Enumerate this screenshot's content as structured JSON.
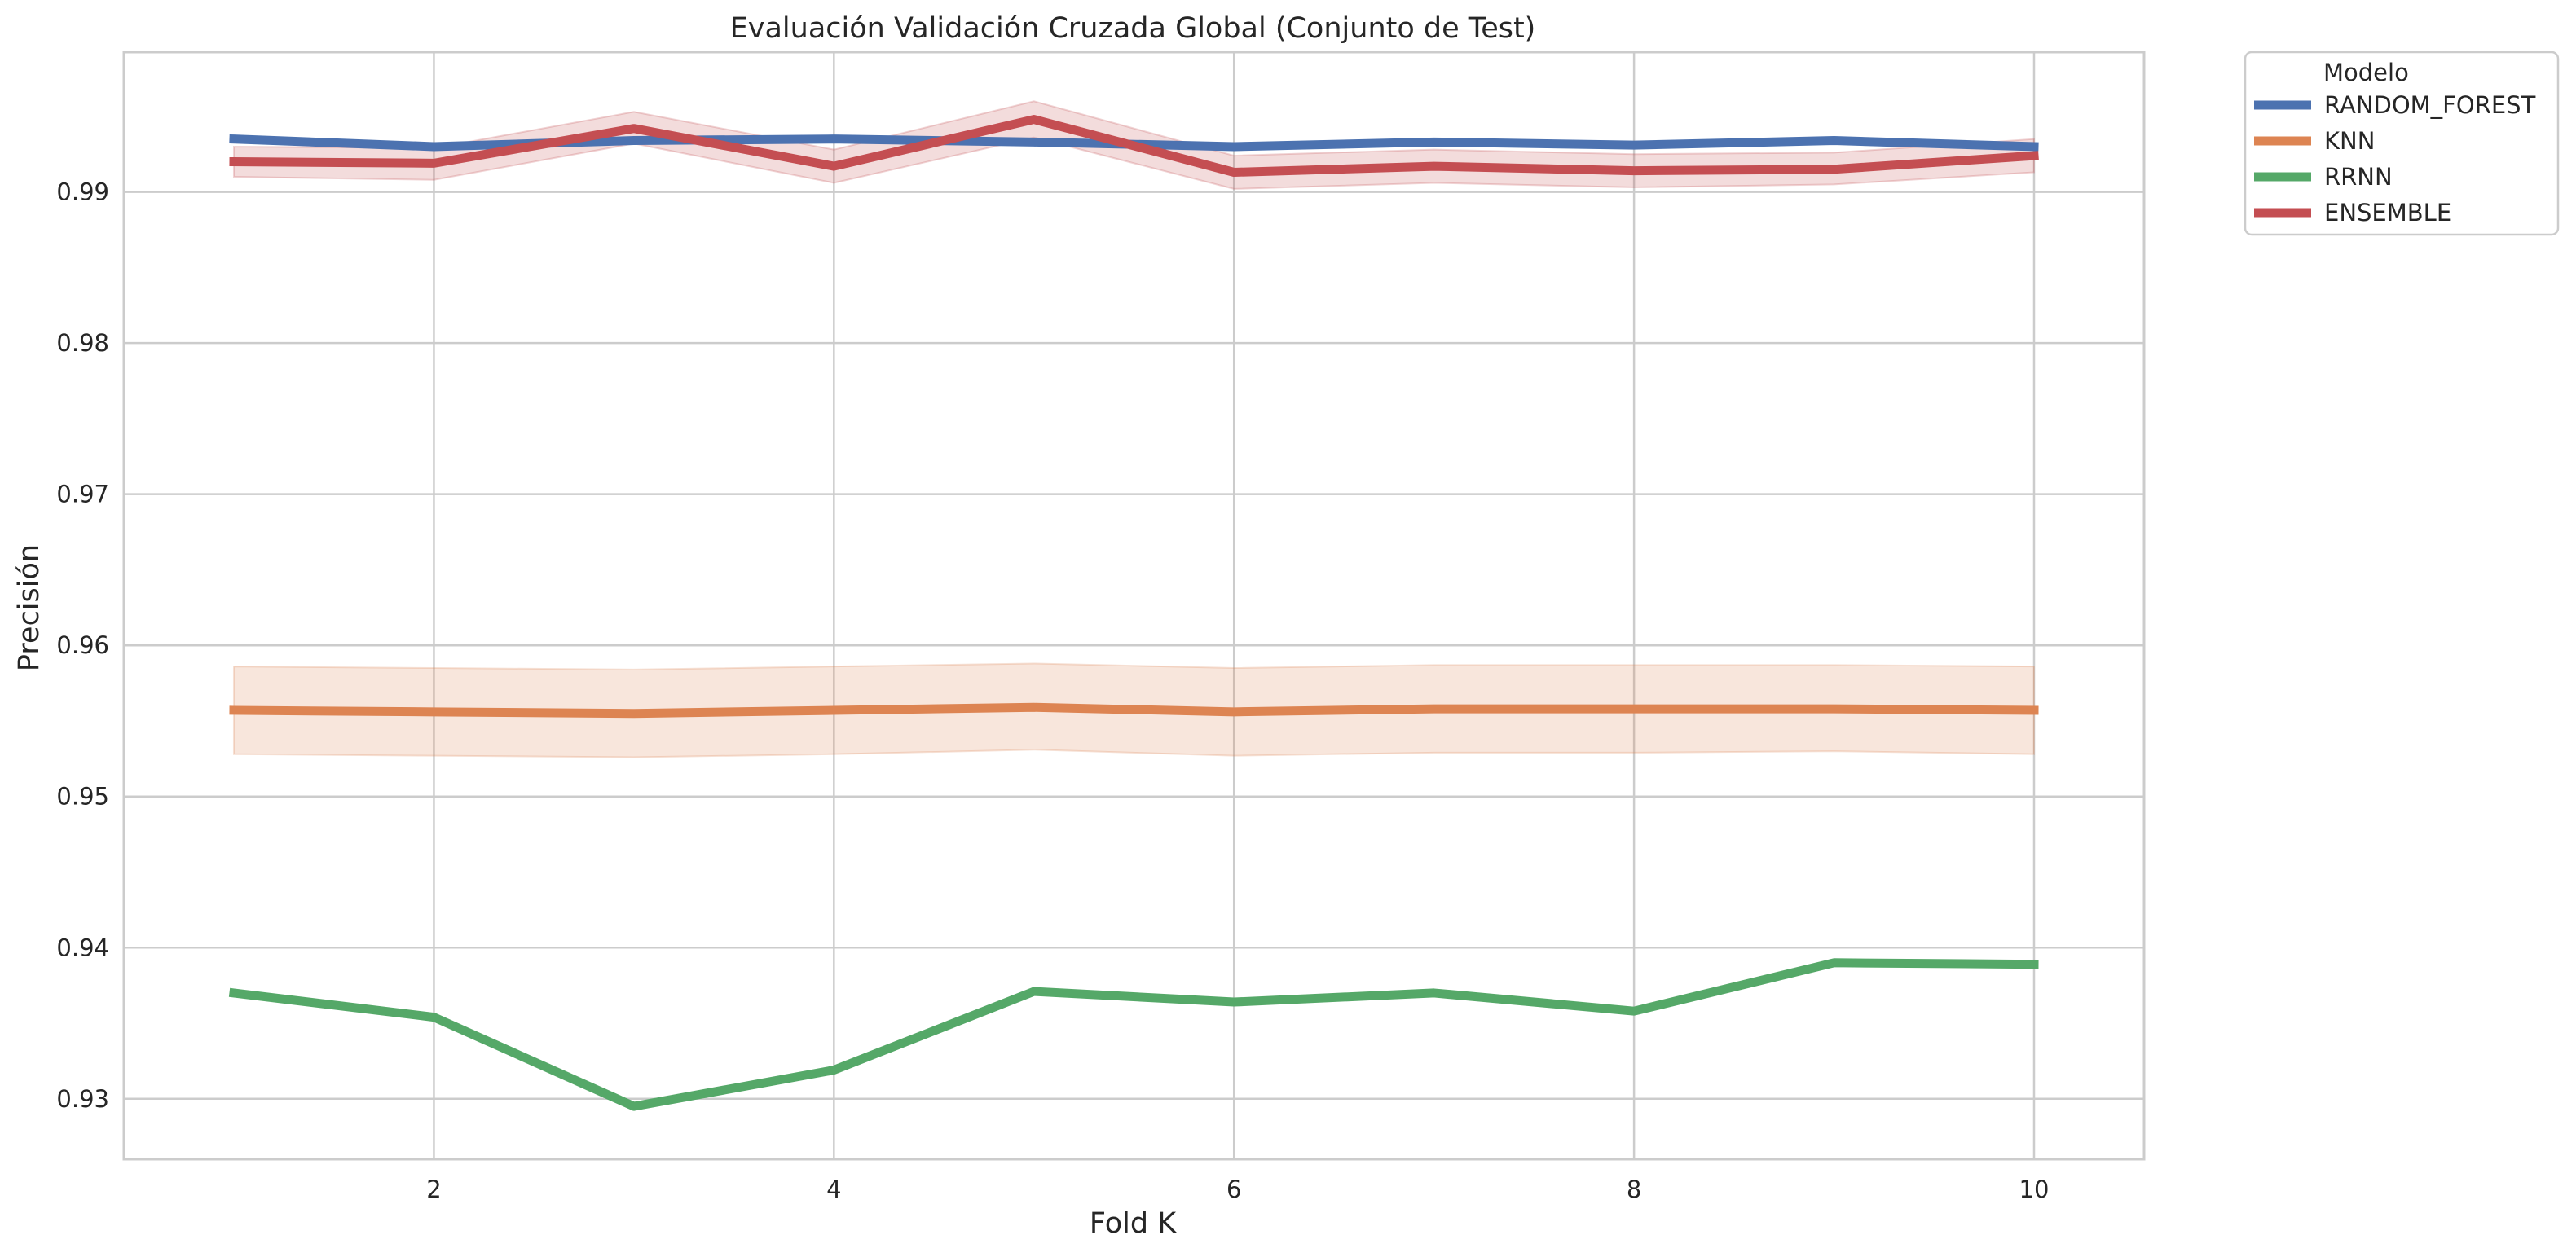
{
  "chart_data": {
    "type": "line",
    "title": "Evaluación Validación Cruzada Global (Conjunto de Test)",
    "xlabel": "Fold K",
    "ylabel": "Precisión",
    "xlim": [
      0.45,
      10.55
    ],
    "ylim": [
      0.926,
      0.99925
    ],
    "xticks": [
      2,
      4,
      6,
      8,
      10
    ],
    "yticks": [
      0.93,
      0.94,
      0.95,
      0.96,
      0.97,
      0.98,
      0.99
    ],
    "ytick_labels": [
      "0.93",
      "0.94",
      "0.95",
      "0.96",
      "0.97",
      "0.98",
      "0.99"
    ],
    "grid": true,
    "legend": {
      "title": "Modelo",
      "placement": "outside-top-right"
    },
    "x": [
      1,
      2,
      3,
      4,
      5,
      6,
      7,
      8,
      9,
      10
    ],
    "series": [
      {
        "name": "RANDOM_FOREST",
        "color": "#4c72b0",
        "values": [
          0.9935,
          0.993,
          0.9934,
          0.9935,
          0.9933,
          0.993,
          0.9933,
          0.9931,
          0.9934,
          0.993
        ],
        "lower": [
          0.9935,
          0.993,
          0.9934,
          0.9935,
          0.9933,
          0.993,
          0.9933,
          0.9931,
          0.9934,
          0.993
        ],
        "upper": [
          0.9935,
          0.993,
          0.9934,
          0.9935,
          0.9933,
          0.993,
          0.9933,
          0.9931,
          0.9934,
          0.993
        ]
      },
      {
        "name": "KNN",
        "color": "#dd8452",
        "values": [
          0.9557,
          0.9556,
          0.9555,
          0.9557,
          0.9559,
          0.9556,
          0.9558,
          0.9558,
          0.9558,
          0.9557
        ],
        "lower": [
          0.9528,
          0.9527,
          0.9526,
          0.9528,
          0.9531,
          0.9527,
          0.9529,
          0.9529,
          0.953,
          0.9528
        ],
        "upper": [
          0.9586,
          0.9585,
          0.9584,
          0.9586,
          0.9588,
          0.9585,
          0.9587,
          0.9587,
          0.9587,
          0.9586
        ]
      },
      {
        "name": "RRNN",
        "color": "#55a868",
        "values": [
          0.937,
          0.9354,
          0.9295,
          0.9319,
          0.9371,
          0.9364,
          0.937,
          0.9358,
          0.939,
          0.9389
        ],
        "lower": [
          0.937,
          0.9354,
          0.9295,
          0.9319,
          0.9371,
          0.9364,
          0.937,
          0.9358,
          0.939,
          0.9389
        ],
        "upper": [
          0.937,
          0.9354,
          0.9295,
          0.9319,
          0.9371,
          0.9364,
          0.937,
          0.9358,
          0.939,
          0.9389
        ]
      },
      {
        "name": "ENSEMBLE",
        "color": "#c44e52",
        "values": [
          0.992,
          0.9919,
          0.9942,
          0.9917,
          0.9948,
          0.9913,
          0.9917,
          0.9914,
          0.9915,
          0.9924
        ],
        "lower": [
          0.991,
          0.9908,
          0.9932,
          0.9906,
          0.9936,
          0.9902,
          0.9906,
          0.9903,
          0.9905,
          0.9913
        ],
        "upper": [
          0.993,
          0.9929,
          0.9953,
          0.9928,
          0.996,
          0.9924,
          0.9928,
          0.9925,
          0.9926,
          0.9935
        ]
      }
    ]
  }
}
